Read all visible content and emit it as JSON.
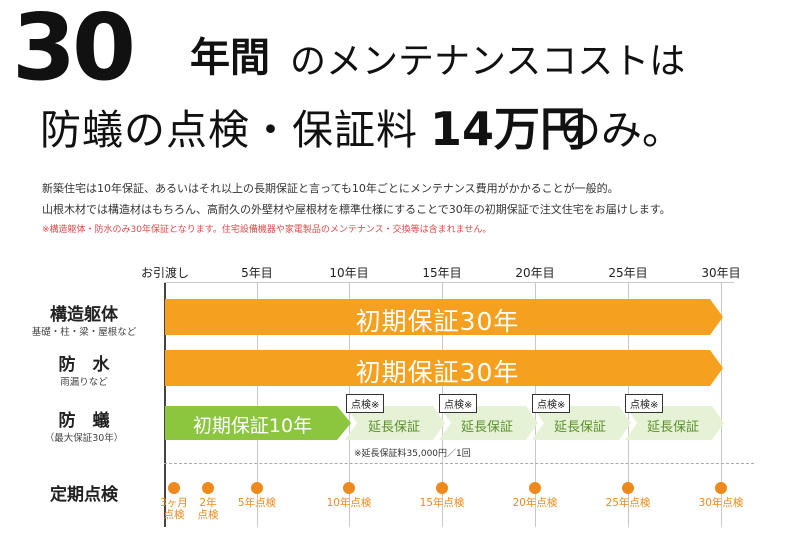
{
  "headline": {
    "big_number": "30",
    "year_kanji": "年間",
    "rest_line1": "のメンテナンスコストは",
    "line2_a": "防蟻の点検・保証料",
    "line2_b": "14万円",
    "line2_c": "のみ。"
  },
  "body": {
    "line1": "新築住宅は10年保証、あるいはそれ以上の長期保証と言っても10年ごとにメンテナンス費用がかかることが一般的。",
    "line2": "山根木材では構造材はもちろん、高耐久の外壁材や屋根材を標準仕様にすることで30年の初期保証で注文住宅をお届けします。",
    "note": "※構造躯体・防水のみ30年保証となります。住宅設備機器や家電製品のメンテナンス・交換等は含まれません。"
  },
  "timeline": {
    "columns": [
      "お引渡し",
      "5年目",
      "10年目",
      "15年目",
      "20年目",
      "25年目",
      "30年目"
    ],
    "rows": [
      {
        "title": "構造躯体",
        "sub": "基礎・柱・梁・屋根など",
        "bar": "初期保証30年"
      },
      {
        "title": "防　水",
        "sub": "雨漏りなど",
        "bar": "初期保証30年"
      },
      {
        "title": "防　蟻",
        "sub": "（最大保証30年）",
        "bar": "初期保証10年"
      }
    ],
    "extension_label": "延長保証",
    "inspection_tag": "点検※",
    "fee_note": "※延長保証料35,000円／1回",
    "periodic": {
      "title": "定期点検",
      "items": [
        "3ヶ月\n点検",
        "2年\n点検",
        "5年点検",
        "10年点検",
        "15年点検",
        "20年点検",
        "25年点検",
        "30年点検"
      ]
    }
  },
  "colors": {
    "orange": "#f5a01f",
    "green": "#8cc63f",
    "light_green": "#e6f2d6",
    "dot": "#ee8a1c"
  }
}
